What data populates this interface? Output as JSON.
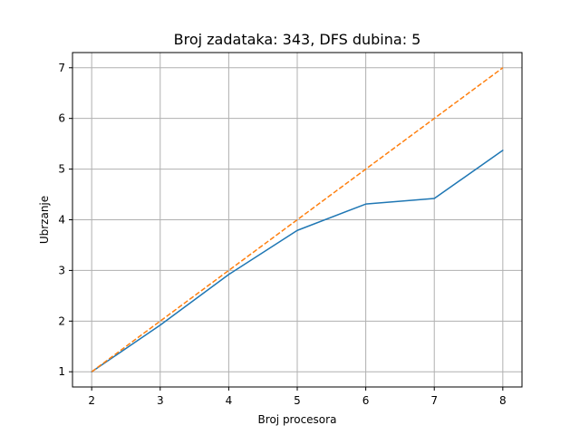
{
  "chart_data": {
    "type": "line",
    "title": "Broj zadataka: 343, DFS dubina: 5",
    "xlabel": "Broj procesora",
    "ylabel": "Ubrzanje",
    "x": [
      2,
      3,
      4,
      5,
      6,
      7,
      8
    ],
    "xlim": [
      1.72,
      8.28
    ],
    "ylim": [
      0.7,
      7.3
    ],
    "xticks": [
      2,
      3,
      4,
      5,
      6,
      7,
      8
    ],
    "yticks": [
      1,
      2,
      3,
      4,
      5,
      6,
      7
    ],
    "grid": true,
    "series": [
      {
        "color": "#1f77b4",
        "style": "solid",
        "values": [
          1.0,
          1.92,
          2.92,
          3.79,
          4.31,
          4.42,
          5.37
        ]
      },
      {
        "color": "#ff7f0e",
        "style": "dashed",
        "values": [
          1,
          2,
          3,
          4,
          5,
          6,
          7
        ]
      }
    ]
  }
}
